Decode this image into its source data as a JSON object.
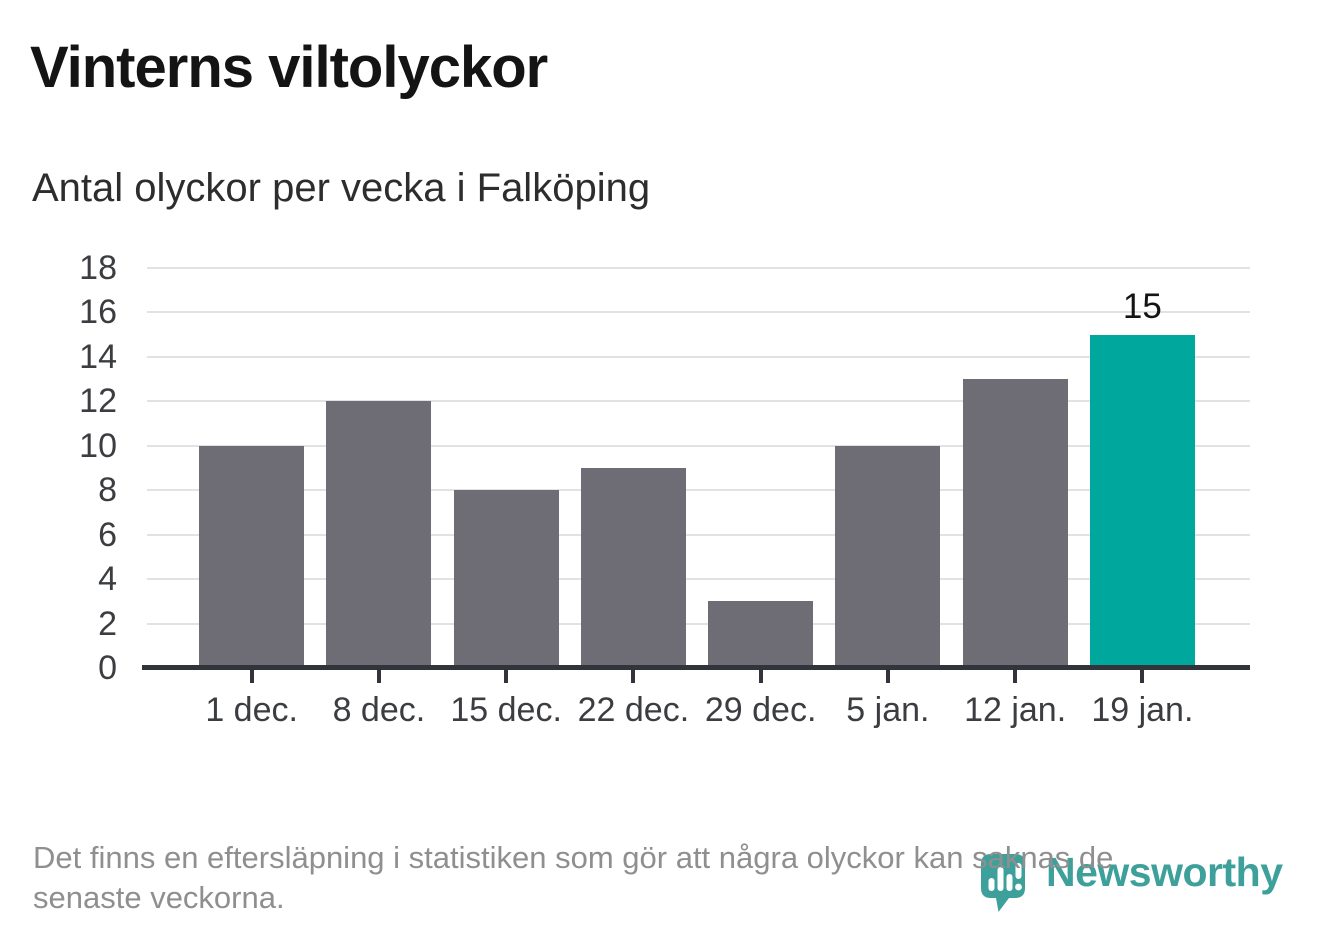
{
  "page": {
    "title": "Vinterns viltolyckor",
    "subtitle": "Antal olyckor per vecka i Falköping"
  },
  "footnote": {
    "lines": [
      "Det finns en eftersläpning i statistiken som gör att några olyckor kan saknas de",
      "senaste veckorna."
    ]
  },
  "branding": {
    "name": "Newsworthy",
    "icon": "newsworthy-speech-bubble-bar-chart-icon",
    "color": "#3da09a"
  },
  "colors": {
    "background": "#ffffff",
    "title": "#141414",
    "subtitle": "#2d2d2d",
    "bar": "#6e6c74",
    "highlight": "#00a79c",
    "gridline": "#e2e2e2",
    "axis_line": "#31343a",
    "axis_label": "#3b3d41",
    "value_label": "#141414",
    "footnote": "#8f8f8f"
  },
  "chart_data": {
    "type": "bar",
    "title": "Vinterns viltolyckor",
    "subtitle": "Antal olyckor per vecka i Falköping",
    "categories": [
      "1 dec.",
      "8 dec.",
      "15 dec.",
      "22 dec.",
      "29 dec.",
      "5 jan.",
      "12 jan.",
      "19 jan."
    ],
    "values": [
      10,
      12,
      8,
      9,
      3,
      10,
      13,
      15
    ],
    "highlight_index": 7,
    "bar_label": {
      "index": 7,
      "text": "15"
    },
    "xlabel": "",
    "ylabel": "",
    "yticks": [
      0,
      2,
      4,
      6,
      8,
      10,
      12,
      14,
      16,
      18
    ],
    "ylim": [
      0,
      18
    ],
    "grid": true,
    "legend": false
  }
}
